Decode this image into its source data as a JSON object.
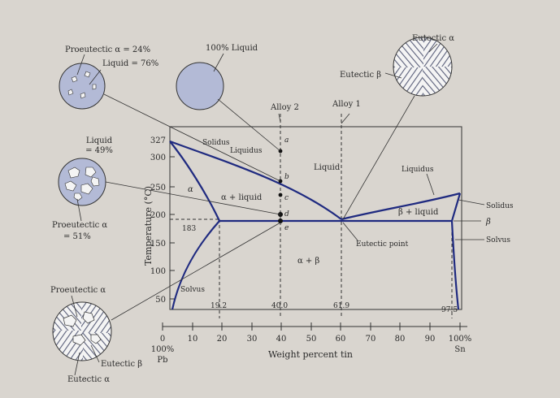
{
  "diagram": {
    "x_axis": {
      "title": "Weight percent tin",
      "ticks": [
        "0",
        "10",
        "20",
        "30",
        "40",
        "50",
        "60",
        "70",
        "80",
        "90",
        "100%"
      ],
      "left_end": [
        "100%",
        "Pb"
      ],
      "right_end": "Sn"
    },
    "y_axis": {
      "title": "Temperature (°C)",
      "ticks": [
        "50",
        "100",
        "150",
        "200",
        "250",
        "300"
      ],
      "top_value": "327"
    },
    "phase_regions": {
      "liquid": "Liquid",
      "alpha": "α",
      "alpha_plus_liquid": "α + liquid",
      "alpha_plus_beta": "α + β",
      "beta_plus_liquid": "β + liquid"
    },
    "curves": {
      "solidus_left": "Solidus",
      "liquidus_left": "Liquidus",
      "liquidus_right": "Liquidus",
      "solvus_left": "Solvus",
      "solidus_right": "Solidus",
      "beta_label": "β",
      "solvus_right": "Solvus",
      "eutectic_point": "Eutectic point"
    },
    "values": {
      "t183": "183",
      "c19_2": "19.2",
      "c40_0": "40.0",
      "c61_9": "61.9",
      "c97_5": "97.5"
    },
    "alloys": {
      "alloy1": "Alloy 1",
      "alloy2": "Alloy 2"
    },
    "points": [
      "a",
      "b",
      "c",
      "d",
      "e"
    ],
    "micro_labels": {
      "proeutectic_24": "Proeutectic α = 24%",
      "liquid_76": "Liquid = 76%",
      "liquid_100": "100% Liquid",
      "liquid_49": [
        "Liquid",
        "= 49%"
      ],
      "proeutectic_51": [
        "Proeutectic α",
        "= 51%"
      ],
      "proeutectic": "Proeutectic α",
      "eutectic_beta_low": "Eutectic β",
      "eutectic_alpha_low": "Eutectic α",
      "eutectic_beta_top": "Eutectic β",
      "eutectic_alpha_top": "Eutectic α"
    }
  }
}
